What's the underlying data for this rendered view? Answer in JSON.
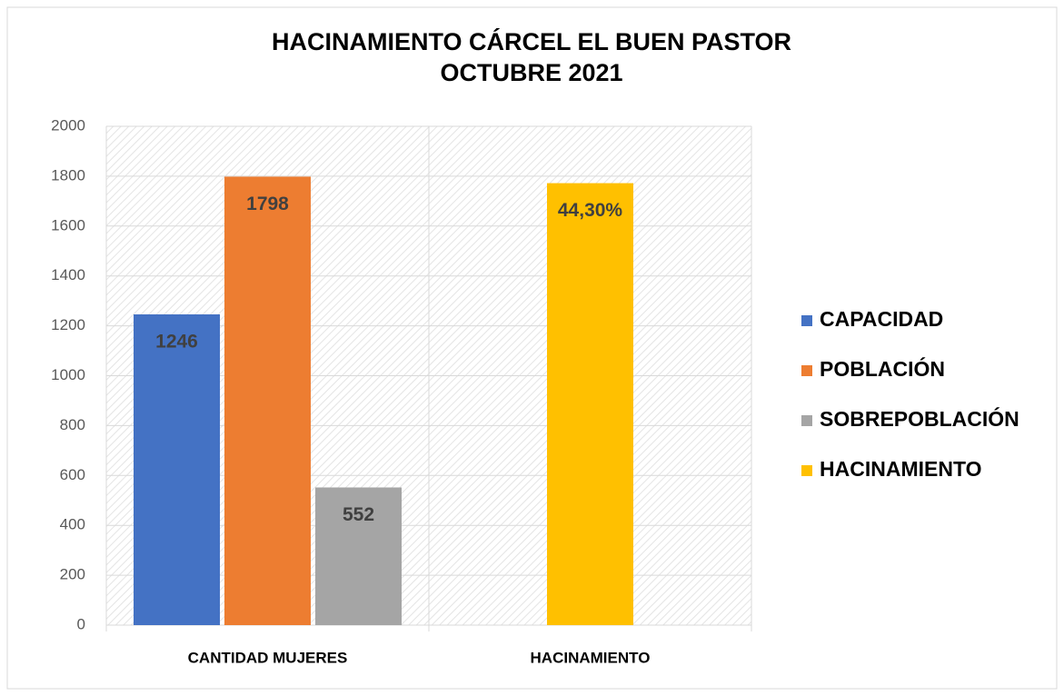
{
  "chart_data": {
    "type": "bar",
    "title": "HACINAMIENTO CÁRCEL EL BUEN PASTOR",
    "subtitle": "OCTUBRE 2021",
    "categories": [
      "CANTIDAD MUJERES",
      "HACINAMIENTO"
    ],
    "series": [
      {
        "name": "CAPACIDAD",
        "color": "#4472c4",
        "values": [
          1246,
          null
        ]
      },
      {
        "name": "POBLACIÓN",
        "color": "#ed7d31",
        "values": [
          1798,
          null
        ]
      },
      {
        "name": "SOBREPOBLACIÓN",
        "color": "#a5a5a5",
        "values": [
          552,
          null
        ]
      },
      {
        "name": "HACINAMIENTO",
        "color": "#ffc000",
        "axis": "y2",
        "values": [
          null,
          44.3
        ],
        "value_labels": [
          null,
          "44,30%"
        ]
      }
    ],
    "ylim": [
      0,
      2000
    ],
    "yticks": [
      0,
      200,
      400,
      600,
      800,
      1000,
      1200,
      1400,
      1600,
      1800,
      2000
    ],
    "y2lim": [
      0,
      50
    ],
    "grid": true,
    "legend": "right"
  }
}
